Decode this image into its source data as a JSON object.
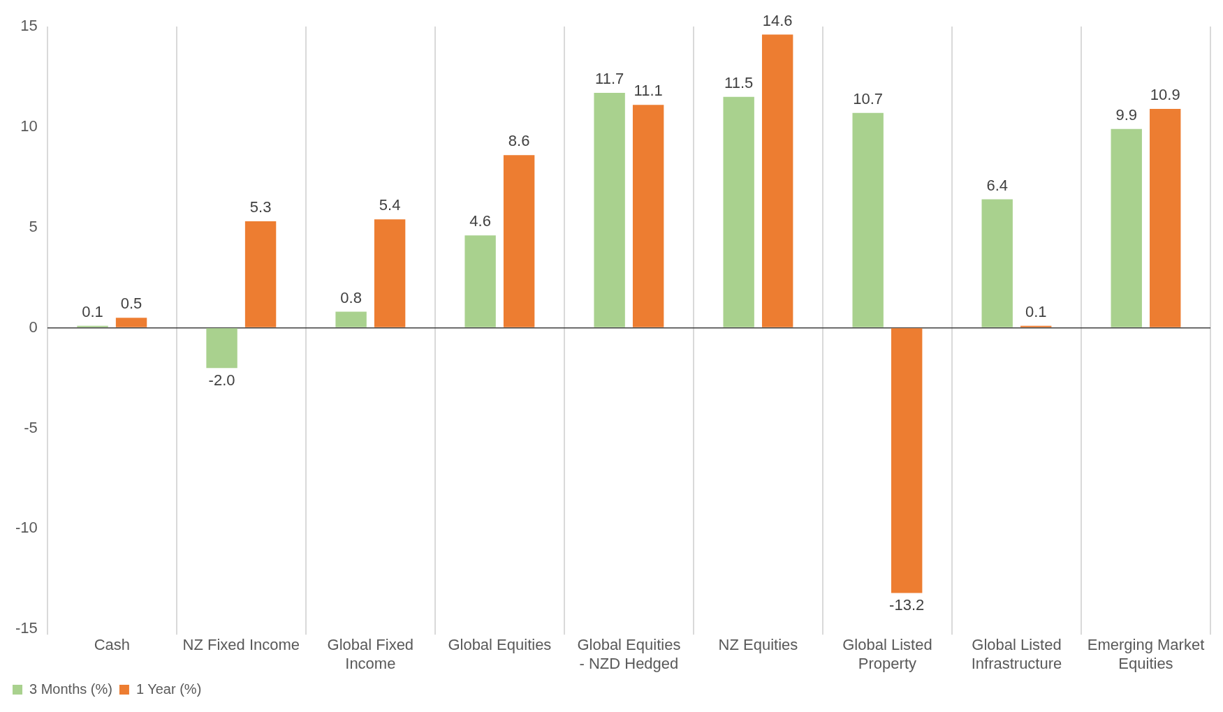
{
  "chart_data": {
    "type": "bar",
    "categories": [
      "Cash",
      "NZ Fixed Income",
      "Global Fixed Income",
      "Global Equities",
      "Global Equities - NZD Hedged",
      "NZ Equities",
      "Global Listed Property",
      "Global Listed Infrastructure",
      "Emerging Market Equities"
    ],
    "series": [
      {
        "name": "3 Months (%)",
        "color": "#a9d18e",
        "values": [
          0.1,
          -2.0,
          0.8,
          4.6,
          11.7,
          11.5,
          10.7,
          6.4,
          9.9
        ],
        "value_labels": [
          "0.1",
          "-2.0",
          "0.8",
          "4.6",
          "11.7",
          "11.5",
          "10.7",
          "6.4",
          "9.9"
        ]
      },
      {
        "name": "1 Year (%)",
        "color": "#ed7d31",
        "values": [
          0.5,
          5.3,
          5.4,
          8.6,
          11.1,
          14.6,
          -13.2,
          0.1,
          10.9
        ],
        "value_labels": [
          "0.5",
          "5.3",
          "5.4",
          "8.6",
          "11.1",
          "14.6",
          "-13.2",
          "0.1",
          "10.9"
        ]
      }
    ],
    "ylim": [
      -15,
      15
    ],
    "yticks": [
      -15,
      -10,
      -5,
      0,
      5,
      10,
      15
    ],
    "grid": "x",
    "legend": "bottom left"
  }
}
